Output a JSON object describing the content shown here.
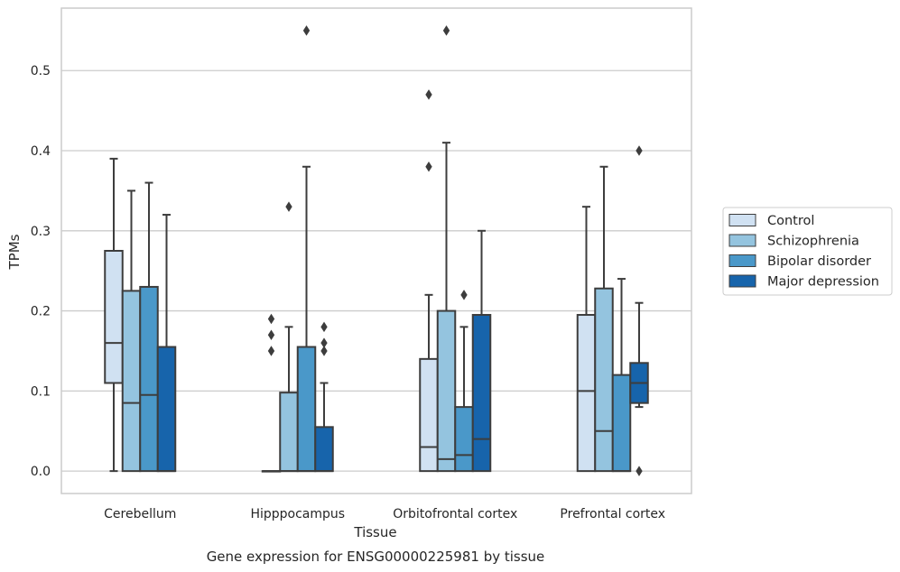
{
  "chart_data": {
    "type": "box",
    "xlabel": "Tissue",
    "ylabel": "TPMs",
    "caption": "Gene expression for ENSG00000225981 by tissue",
    "ylim": [
      -0.028,
      0.578
    ],
    "yticks": [
      0.0,
      0.1,
      0.2,
      0.3,
      0.4,
      0.5
    ],
    "ytick_labels": [
      "0.0",
      "0.1",
      "0.2",
      "0.3",
      "0.4",
      "0.5"
    ],
    "grid": "horizontal",
    "legend_position": "right",
    "categories": [
      "Cerebellum",
      "Hipppocampus",
      "Orbitofrontal cortex",
      "Prefrontal cortex"
    ],
    "series": [
      {
        "name": "Control",
        "color": "#d0e1f2",
        "boxes": [
          {
            "whislo": 0.0,
            "q1": 0.11,
            "med": 0.16,
            "q3": 0.275,
            "whishi": 0.39,
            "fliers": []
          },
          {
            "whislo": 0.0,
            "q1": 0.0,
            "med": 0.0,
            "q3": 0.0,
            "whishi": 0.0,
            "fliers": [
              0.15,
              0.17,
              0.19
            ]
          },
          {
            "whislo": 0.0,
            "q1": 0.0,
            "med": 0.03,
            "q3": 0.14,
            "whishi": 0.22,
            "fliers": [
              0.38,
              0.47
            ]
          },
          {
            "whislo": 0.0,
            "q1": 0.0,
            "med": 0.1,
            "q3": 0.195,
            "whishi": 0.33,
            "fliers": []
          }
        ]
      },
      {
        "name": "Schizophrenia",
        "color": "#94c4df",
        "boxes": [
          {
            "whislo": 0.0,
            "q1": 0.0,
            "med": 0.085,
            "q3": 0.225,
            "whishi": 0.35,
            "fliers": []
          },
          {
            "whislo": 0.0,
            "q1": 0.0,
            "med": 0.0,
            "q3": 0.098,
            "whishi": 0.18,
            "fliers": [
              0.33
            ]
          },
          {
            "whislo": 0.0,
            "q1": 0.0,
            "med": 0.015,
            "q3": 0.2,
            "whishi": 0.41,
            "fliers": [
              0.55
            ]
          },
          {
            "whislo": 0.0,
            "q1": 0.0,
            "med": 0.05,
            "q3": 0.228,
            "whishi": 0.38,
            "fliers": []
          }
        ]
      },
      {
        "name": "Bipolar disorder",
        "color": "#4a98c9",
        "boxes": [
          {
            "whislo": 0.0,
            "q1": 0.0,
            "med": 0.095,
            "q3": 0.23,
            "whishi": 0.36,
            "fliers": []
          },
          {
            "whislo": 0.0,
            "q1": 0.0,
            "med": 0.0,
            "q3": 0.155,
            "whishi": 0.38,
            "fliers": [
              0.55
            ]
          },
          {
            "whislo": 0.0,
            "q1": 0.0,
            "med": 0.02,
            "q3": 0.08,
            "whishi": 0.18,
            "fliers": [
              0.22
            ]
          },
          {
            "whislo": 0.0,
            "q1": 0.0,
            "med": 0.0,
            "q3": 0.12,
            "whishi": 0.24,
            "fliers": []
          }
        ]
      },
      {
        "name": "Major depression",
        "color": "#1764ab",
        "boxes": [
          {
            "whislo": 0.0,
            "q1": 0.0,
            "med": 0.0,
            "q3": 0.155,
            "whishi": 0.32,
            "fliers": []
          },
          {
            "whislo": 0.0,
            "q1": 0.0,
            "med": 0.0,
            "q3": 0.055,
            "whishi": 0.11,
            "fliers": [
              0.15,
              0.16,
              0.18
            ]
          },
          {
            "whislo": 0.0,
            "q1": 0.0,
            "med": 0.04,
            "q3": 0.195,
            "whishi": 0.3,
            "fliers": []
          },
          {
            "whislo": 0.08,
            "q1": 0.085,
            "med": 0.11,
            "q3": 0.135,
            "whishi": 0.21,
            "fliers": [
              0.0,
              0.4
            ]
          }
        ]
      }
    ]
  }
}
